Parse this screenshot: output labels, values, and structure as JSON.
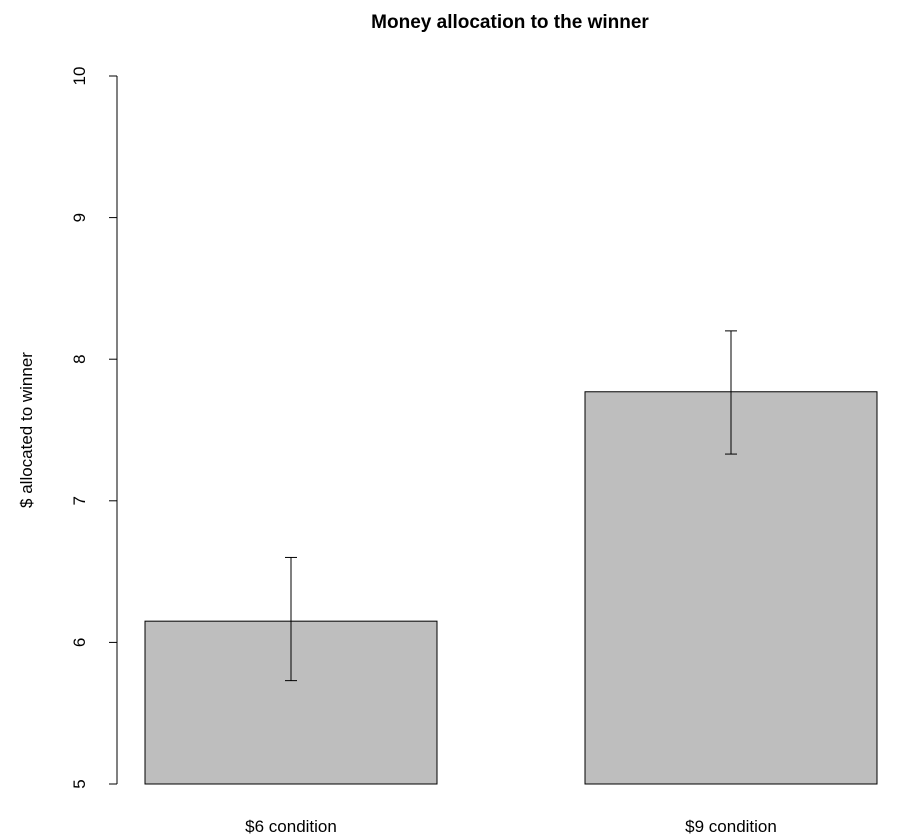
{
  "chart_data": {
    "type": "bar",
    "title": "Money allocation to the winner",
    "xlabel": "",
    "ylabel": "$ allocated to winner",
    "categories": [
      "$6 condition",
      "$9 condition"
    ],
    "values": [
      6.15,
      7.77
    ],
    "error_bars": [
      {
        "lower": 5.73,
        "upper": 6.6
      },
      {
        "lower": 7.33,
        "upper": 8.2
      }
    ],
    "ylim": [
      5,
      10
    ],
    "yticks": [
      5,
      6,
      7,
      8,
      9,
      10
    ],
    "ytick_labels": [
      "5",
      "6",
      "7",
      "8",
      "9",
      "10"
    ],
    "grid": false,
    "legend": "none",
    "colors": {
      "bar_fill": "#bebebe",
      "bar_stroke": "#000000",
      "axis": "#000000",
      "error_bar": "#000000"
    }
  }
}
